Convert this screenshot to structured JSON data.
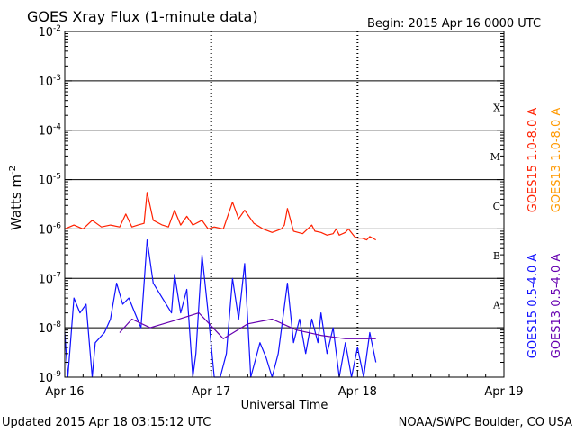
{
  "header": {
    "title": "GOES Xray Flux (1-minute data)",
    "begin": "Begin:  2015 Apr 16 0000 UTC"
  },
  "footer": {
    "updated": "Updated 2015 Apr 18 03:15:12 UTC",
    "credit": "NOAA/SWPC Boulder, CO USA"
  },
  "chart_data": {
    "type": "line",
    "ylabel_base": "Watts m",
    "ylabel_exp": "-2",
    "xlabel": "Universal Time",
    "yscale": "log",
    "ylim": [
      1e-09,
      0.01
    ],
    "xlim": [
      "2015-04-16 00:00",
      "2015-04-19 00:00"
    ],
    "x_ticks": [
      "Apr 16",
      "Apr 17",
      "Apr 18",
      "Apr 19"
    ],
    "y_ticks": [
      {
        "mantissa": "10",
        "exp": "-2"
      },
      {
        "mantissa": "10",
        "exp": "-3"
      },
      {
        "mantissa": "10",
        "exp": "-4"
      },
      {
        "mantissa": "10",
        "exp": "-5"
      },
      {
        "mantissa": "10",
        "exp": "-6"
      },
      {
        "mantissa": "10",
        "exp": "-7"
      },
      {
        "mantissa": "10",
        "exp": "-8"
      },
      {
        "mantissa": "10",
        "exp": "-9"
      }
    ],
    "flare_classes": [
      {
        "label": "X",
        "low": 0.0001
      },
      {
        "label": "M",
        "low": 1e-05
      },
      {
        "label": "C",
        "low": 1e-06
      },
      {
        "label": "B",
        "low": 1e-07
      },
      {
        "label": "A",
        "low": 1e-08
      }
    ],
    "grid": true,
    "legend_position": "right, vertical",
    "series": [
      {
        "name": "GOES15 1.0-8.0 A",
        "color": "#ff2000",
        "points": [
          [
            "2015-04-16 00:00",
            1e-06
          ],
          [
            "2015-04-16 01:30",
            1.2e-06
          ],
          [
            "2015-04-16 03:00",
            1e-06
          ],
          [
            "2015-04-16 04:30",
            1.5e-06
          ],
          [
            "2015-04-16 06:00",
            1.1e-06
          ],
          [
            "2015-04-16 07:30",
            1.2e-06
          ],
          [
            "2015-04-16 09:00",
            1.1e-06
          ],
          [
            "2015-04-16 10:00",
            2e-06
          ],
          [
            "2015-04-16 11:00",
            1.1e-06
          ],
          [
            "2015-04-16 12:00",
            1.2e-06
          ],
          [
            "2015-04-16 13:00",
            1.3e-06
          ],
          [
            "2015-04-16 13:30",
            5.5e-06
          ],
          [
            "2015-04-16 14:30",
            1.5e-06
          ],
          [
            "2015-04-16 16:00",
            1.2e-06
          ],
          [
            "2015-04-16 17:00",
            1.1e-06
          ],
          [
            "2015-04-16 18:00",
            2.4e-06
          ],
          [
            "2015-04-16 19:00",
            1.2e-06
          ],
          [
            "2015-04-16 20:00",
            1.8e-06
          ],
          [
            "2015-04-16 21:00",
            1.2e-06
          ],
          [
            "2015-04-16 22:30",
            1.5e-06
          ],
          [
            "2015-04-16 23:30",
            1e-06
          ],
          [
            "2015-04-17 00:30",
            1.1e-06
          ],
          [
            "2015-04-17 02:00",
            1e-06
          ],
          [
            "2015-04-17 03:30",
            3.5e-06
          ],
          [
            "2015-04-17 04:30",
            1.6e-06
          ],
          [
            "2015-04-17 05:30",
            2.4e-06
          ],
          [
            "2015-04-17 07:00",
            1.3e-06
          ],
          [
            "2015-04-17 08:30",
            1e-06
          ],
          [
            "2015-04-17 10:00",
            8.5e-07
          ],
          [
            "2015-04-17 11:30",
            1e-06
          ],
          [
            "2015-04-17 12:00",
            1.2e-06
          ],
          [
            "2015-04-17 12:30",
            2.6e-06
          ],
          [
            "2015-04-17 13:30",
            9e-07
          ],
          [
            "2015-04-17 15:00",
            8e-07
          ],
          [
            "2015-04-17 16:30",
            1.2e-06
          ],
          [
            "2015-04-17 17:00",
            9e-07
          ],
          [
            "2015-04-17 18:00",
            8.5e-07
          ],
          [
            "2015-04-17 19:00",
            7.5e-07
          ],
          [
            "2015-04-17 20:00",
            8e-07
          ],
          [
            "2015-04-17 20:30",
            1e-06
          ],
          [
            "2015-04-17 21:00",
            7.5e-07
          ],
          [
            "2015-04-17 22:00",
            8.5e-07
          ],
          [
            "2015-04-17 22:30",
            1e-06
          ],
          [
            "2015-04-17 23:30",
            7e-07
          ],
          [
            "2015-04-18 00:00",
            6.5e-07
          ],
          [
            "2015-04-18 00:45",
            6.5e-07
          ],
          [
            "2015-04-18 01:30",
            6e-07
          ],
          [
            "2015-04-18 02:00",
            7e-07
          ],
          [
            "2015-04-18 03:00",
            6e-07
          ]
        ]
      },
      {
        "name": "GOES13 1.0-8.0 A",
        "color": "#ff9900",
        "points": []
      },
      {
        "name": "GOES15 0.5-4.0 A",
        "color": "#1010ff",
        "points": [
          [
            "2015-04-16 00:00",
            8e-09
          ],
          [
            "2015-04-16 00:30",
            1e-09
          ],
          [
            "2015-04-16 01:30",
            4e-08
          ],
          [
            "2015-04-16 02:30",
            2e-08
          ],
          [
            "2015-04-16 03:30",
            3e-08
          ],
          [
            "2015-04-16 04:30",
            1e-09
          ],
          [
            "2015-04-16 05:00",
            5e-09
          ],
          [
            "2015-04-16 06:30",
            8e-09
          ],
          [
            "2015-04-16 07:30",
            1.5e-08
          ],
          [
            "2015-04-16 08:30",
            8e-08
          ],
          [
            "2015-04-16 09:30",
            3e-08
          ],
          [
            "2015-04-16 10:30",
            4e-08
          ],
          [
            "2015-04-16 11:30",
            2e-08
          ],
          [
            "2015-04-16 12:30",
            1e-08
          ],
          [
            "2015-04-16 13:30",
            6e-07
          ],
          [
            "2015-04-16 14:30",
            8e-08
          ],
          [
            "2015-04-16 16:00",
            4e-08
          ],
          [
            "2015-04-16 17:30",
            2e-08
          ],
          [
            "2015-04-16 18:00",
            1.2e-07
          ],
          [
            "2015-04-16 19:00",
            2e-08
          ],
          [
            "2015-04-16 20:00",
            6e-08
          ],
          [
            "2015-04-16 21:00",
            1e-09
          ],
          [
            "2015-04-16 21:30",
            3e-09
          ],
          [
            "2015-04-16 22:30",
            3e-07
          ],
          [
            "2015-04-16 23:30",
            2e-08
          ],
          [
            "2015-04-17 00:30",
            1e-09
          ],
          [
            "2015-04-17 01:30",
            1e-09
          ],
          [
            "2015-04-17 02:30",
            3e-09
          ],
          [
            "2015-04-17 03:30",
            1e-07
          ],
          [
            "2015-04-17 04:30",
            1.5e-08
          ],
          [
            "2015-04-17 05:30",
            2e-07
          ],
          [
            "2015-04-17 06:30",
            1e-09
          ],
          [
            "2015-04-17 08:00",
            5e-09
          ],
          [
            "2015-04-17 09:00",
            2.5e-09
          ],
          [
            "2015-04-17 10:00",
            1e-09
          ],
          [
            "2015-04-17 11:00",
            3e-09
          ],
          [
            "2015-04-17 12:30",
            8e-08
          ],
          [
            "2015-04-17 13:30",
            5e-09
          ],
          [
            "2015-04-17 14:30",
            1.5e-08
          ],
          [
            "2015-04-17 15:30",
            3e-09
          ],
          [
            "2015-04-17 16:30",
            1.5e-08
          ],
          [
            "2015-04-17 17:30",
            5e-09
          ],
          [
            "2015-04-17 18:00",
            2e-08
          ],
          [
            "2015-04-17 19:00",
            3e-09
          ],
          [
            "2015-04-17 20:00",
            1e-08
          ],
          [
            "2015-04-17 21:00",
            1e-09
          ],
          [
            "2015-04-17 22:00",
            5e-09
          ],
          [
            "2015-04-17 23:00",
            1e-09
          ],
          [
            "2015-04-18 00:00",
            4e-09
          ],
          [
            "2015-04-18 01:00",
            1e-09
          ],
          [
            "2015-04-18 02:00",
            8e-09
          ],
          [
            "2015-04-18 03:00",
            2e-09
          ]
        ]
      },
      {
        "name": "GOES13 0.5-4.0 A",
        "color": "#6600b0",
        "points": [
          [
            "2015-04-16 09:00",
            8e-09
          ],
          [
            "2015-04-16 11:00",
            1.5e-08
          ],
          [
            "2015-04-16 14:00",
            1e-08
          ],
          [
            "2015-04-16 18:00",
            1.4e-08
          ],
          [
            "2015-04-16 22:00",
            2e-08
          ],
          [
            "2015-04-17 02:00",
            6e-09
          ],
          [
            "2015-04-17 06:00",
            1.2e-08
          ],
          [
            "2015-04-17 10:00",
            1.5e-08
          ],
          [
            "2015-04-17 14:00",
            9e-09
          ],
          [
            "2015-04-17 18:00",
            7e-09
          ],
          [
            "2015-04-17 22:00",
            6e-09
          ],
          [
            "2015-04-18 03:00",
            6e-09
          ]
        ]
      }
    ]
  }
}
